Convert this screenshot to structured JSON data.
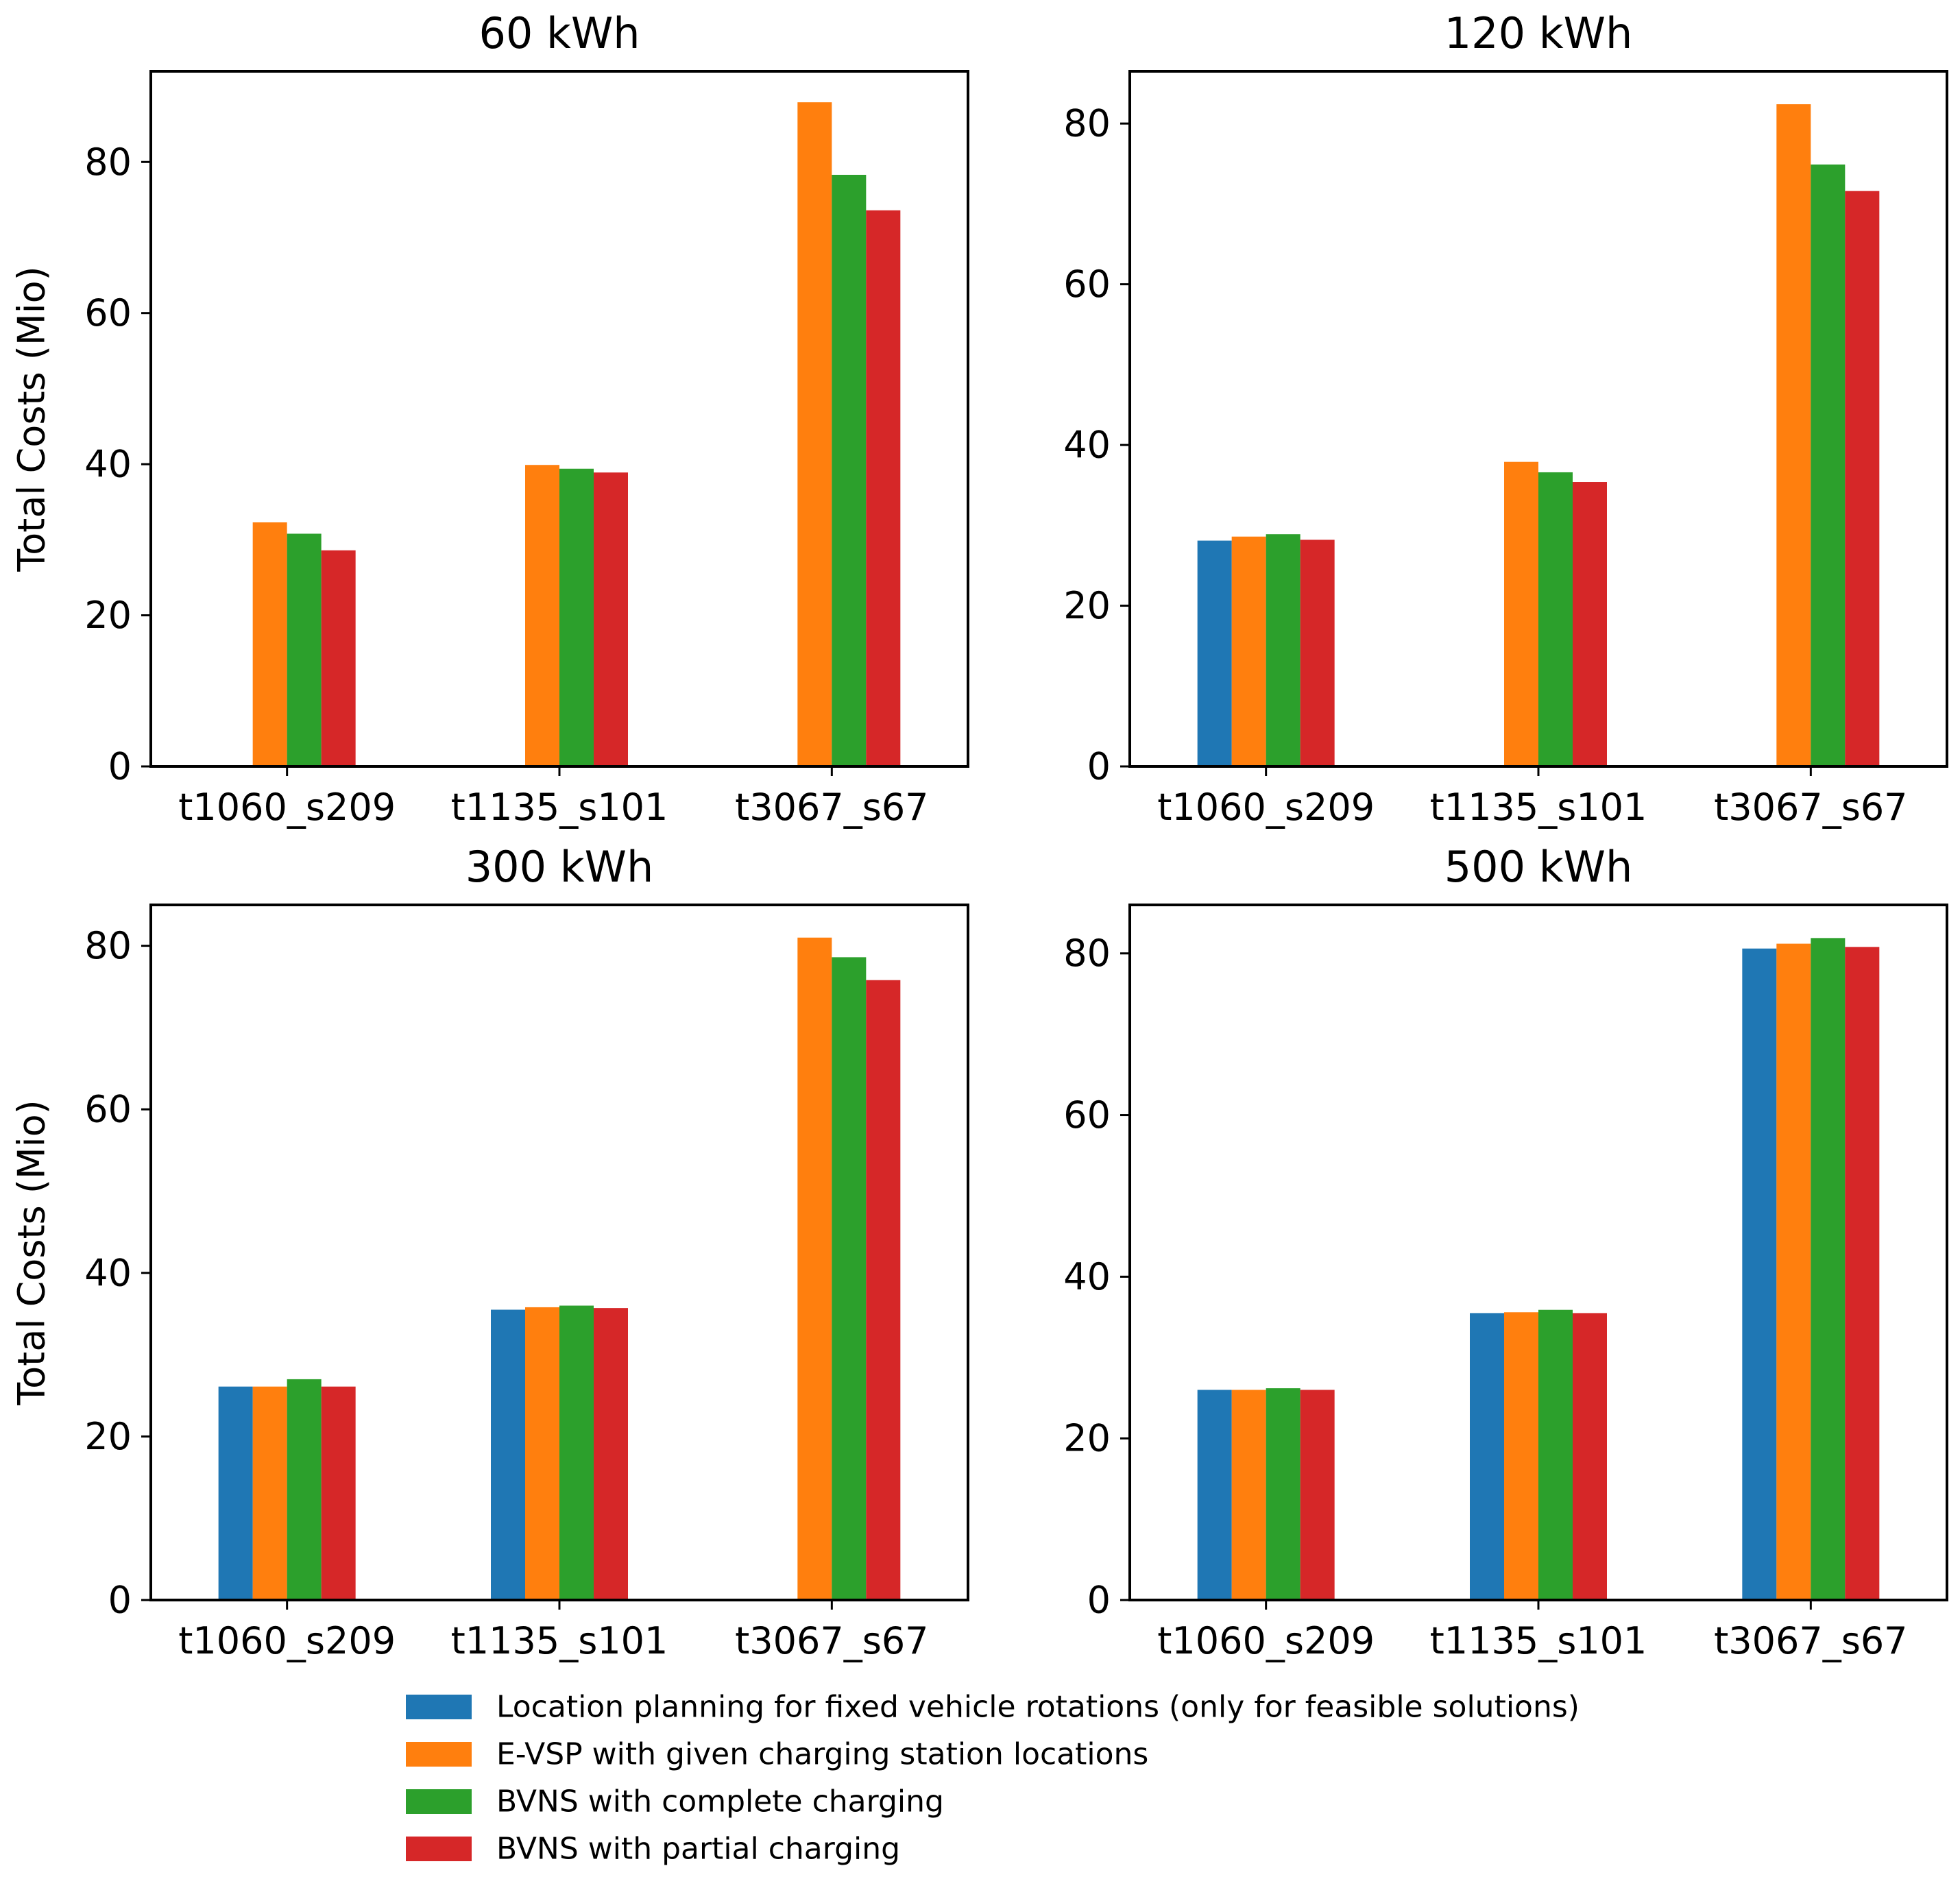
{
  "chart_data": [
    {
      "type": "bar",
      "title": "60 kWh",
      "xlabel": "",
      "ylabel": "Total Costs (Mio)",
      "ylim": [
        0,
        92
      ],
      "yticks": [
        0,
        20,
        40,
        60,
        80
      ],
      "categories": [
        "t1060_s209",
        "t1135_s101",
        "t3067_s67"
      ],
      "series": [
        {
          "name": "Location planning for fixed vehicle rotations (only for feasible solutions)",
          "values": [
            null,
            null,
            null
          ]
        },
        {
          "name": "E-VSP with given charging station locations",
          "values": [
            32.3,
            39.9,
            87.9
          ]
        },
        {
          "name": "BVNS with complete charging",
          "values": [
            30.8,
            39.4,
            78.3
          ]
        },
        {
          "name": "BVNS with partial charging",
          "values": [
            28.6,
            38.9,
            73.6
          ]
        }
      ]
    },
    {
      "type": "bar",
      "title": "120 kWh",
      "xlabel": "",
      "ylabel": "",
      "ylim": [
        0,
        86.5
      ],
      "yticks": [
        0,
        20,
        40,
        60,
        80
      ],
      "categories": [
        "t1060_s209",
        "t1135_s101",
        "t3067_s67"
      ],
      "series": [
        {
          "name": "Location planning for fixed vehicle rotations (only for feasible solutions)",
          "values": [
            28.1,
            null,
            null
          ]
        },
        {
          "name": "E-VSP with given charging station locations",
          "values": [
            28.6,
            37.9,
            82.4
          ]
        },
        {
          "name": "BVNS with complete charging",
          "values": [
            28.9,
            36.6,
            74.9
          ]
        },
        {
          "name": "BVNS with partial charging",
          "values": [
            28.2,
            35.4,
            71.6
          ]
        }
      ]
    },
    {
      "type": "bar",
      "title": "300 kWh",
      "xlabel": "",
      "ylabel": "Total Costs (Mio)",
      "ylim": [
        0,
        85
      ],
      "yticks": [
        0,
        20,
        40,
        60,
        80
      ],
      "categories": [
        "t1060_s209",
        "t1135_s101",
        "t3067_s67"
      ],
      "series": [
        {
          "name": "Location planning for fixed vehicle rotations (only for feasible solutions)",
          "values": [
            26.1,
            35.5,
            null
          ]
        },
        {
          "name": "E-VSP with given charging station locations",
          "values": [
            26.1,
            35.8,
            81.0
          ]
        },
        {
          "name": "BVNS with complete charging",
          "values": [
            27.0,
            36.0,
            78.6
          ]
        },
        {
          "name": "BVNS with partial charging",
          "values": [
            26.1,
            35.7,
            75.8
          ]
        }
      ]
    },
    {
      "type": "bar",
      "title": "500 kWh",
      "xlabel": "",
      "ylabel": "",
      "ylim": [
        0,
        86
      ],
      "yticks": [
        0,
        20,
        40,
        60,
        80
      ],
      "categories": [
        "t1060_s209",
        "t1135_s101",
        "t3067_s67"
      ],
      "series": [
        {
          "name": "Location planning for fixed vehicle rotations (only for feasible solutions)",
          "values": [
            26.0,
            35.5,
            80.6
          ]
        },
        {
          "name": "E-VSP with given charging station locations",
          "values": [
            26.0,
            35.6,
            81.2
          ]
        },
        {
          "name": "BVNS with complete charging",
          "values": [
            26.2,
            35.9,
            81.9
          ]
        },
        {
          "name": "BVNS with partial charging",
          "values": [
            26.0,
            35.5,
            80.8
          ]
        }
      ]
    }
  ],
  "legend": {
    "placement": "bottom-center",
    "entries": [
      {
        "label": "Location planning for fixed vehicle rotations (only for feasible solutions)",
        "color": "#1f77b4"
      },
      {
        "label": "E-VSP with given charging station locations",
        "color": "#ff7f0e"
      },
      {
        "label": "BVNS with complete charging",
        "color": "#2ca02c"
      },
      {
        "label": "BVNS with partial charging",
        "color": "#d62728"
      }
    ]
  },
  "colors": [
    "#1f77b4",
    "#ff7f0e",
    "#2ca02c",
    "#d62728"
  ]
}
